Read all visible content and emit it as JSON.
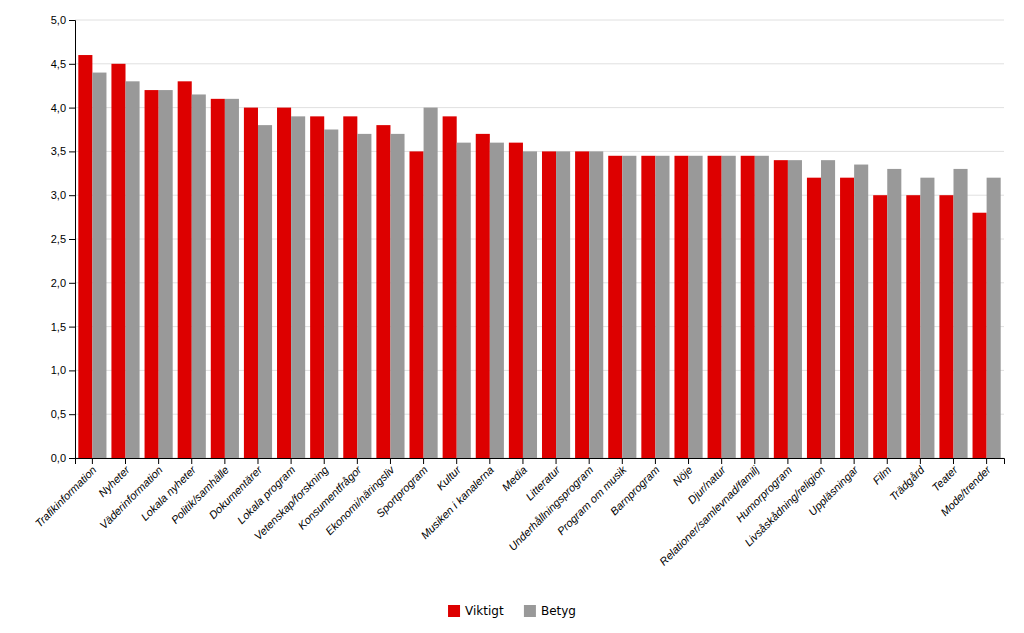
{
  "chart_data": {
    "type": "bar",
    "categories": [
      "Trafikinformation",
      "Nyheter",
      "Väderinformation",
      "Lokala nyheter",
      "Politik/samhälle",
      "Dokumentärer",
      "Lokala program",
      "Vetenskap/forskning",
      "Konsumentfrågor",
      "Ekonomi/näringsliv",
      "Sportprogram",
      "Kultur",
      "Musiken i kanalerna",
      "Media",
      "Litteratur",
      "Underhållningsprogram",
      "Program om musik",
      "Barnprogram",
      "Nöje",
      "Djur/natur",
      "Relationer/samlevnad/familj",
      "Humorprogram",
      "Livsåskådning/religion",
      "Uppläsningar",
      "Film",
      "Trädgård",
      "Teater",
      "Mode/trender"
    ],
    "series": [
      {
        "name": "Viktigt",
        "color": "#dd0000",
        "values": [
          4.6,
          4.5,
          4.2,
          4.3,
          4.1,
          4.0,
          4.0,
          3.9,
          3.9,
          3.8,
          3.5,
          3.9,
          3.7,
          3.6,
          3.5,
          3.5,
          3.45,
          3.45,
          3.45,
          3.45,
          3.45,
          3.4,
          3.2,
          3.2,
          3.0,
          3.0,
          3.0,
          2.8
        ]
      },
      {
        "name": "Betyg",
        "color": "#999999",
        "values": [
          4.4,
          4.3,
          4.2,
          4.15,
          4.1,
          3.8,
          3.9,
          3.75,
          3.7,
          3.7,
          4.0,
          3.6,
          3.6,
          3.5,
          3.5,
          3.5,
          3.45,
          3.45,
          3.45,
          3.45,
          3.45,
          3.4,
          3.4,
          3.35,
          3.3,
          3.2,
          3.3,
          3.2
        ]
      }
    ],
    "ylim": [
      0.0,
      5.0
    ],
    "yticks": [
      {
        "value": 0.0,
        "label": "0,0"
      },
      {
        "value": 0.5,
        "label": "0,5"
      },
      {
        "value": 1.0,
        "label": "1,0"
      },
      {
        "value": 1.5,
        "label": "1,5"
      },
      {
        "value": 2.0,
        "label": "2,0"
      },
      {
        "value": 2.5,
        "label": "2,5"
      },
      {
        "value": 3.0,
        "label": "3,0"
      },
      {
        "value": 3.5,
        "label": "3,5"
      },
      {
        "value": 4.0,
        "label": "4,0"
      },
      {
        "value": 4.5,
        "label": "4,5"
      },
      {
        "value": 5.0,
        "label": "5,0"
      }
    ],
    "grid": true,
    "legend": "bottom"
  }
}
